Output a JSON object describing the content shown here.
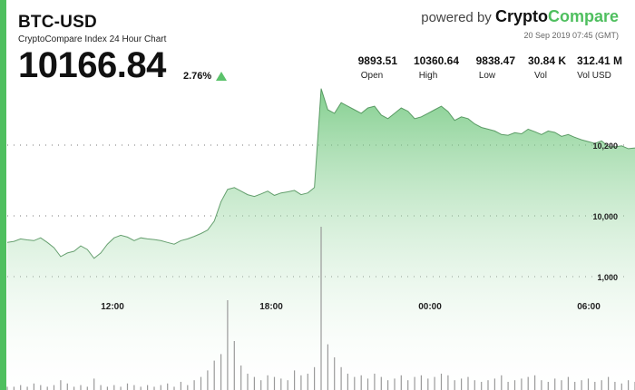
{
  "colors": {
    "accent": "#4fbf5f",
    "area_fill_top": "#5bbf6a",
    "area_fill_bottom": "#ffffff",
    "line": "#2d7a3a",
    "volume": "#9a9a9a",
    "up": "#5bc26b"
  },
  "header": {
    "pair": "BTC-USD",
    "subtitle": "CryptoCompare Index 24 Hour Chart",
    "price": "10166.84",
    "change": "2.76%",
    "change_icon": "triangle-up-icon"
  },
  "branding": {
    "prefix": "powered by",
    "brand_a": "Crypto",
    "brand_b": "Compare",
    "timestamp": "20 Sep 2019 07:45 (GMT)"
  },
  "stats": [
    {
      "value": "9893.51",
      "label": "Open"
    },
    {
      "value": "10360.64",
      "label": "High"
    },
    {
      "value": "9838.47",
      "label": "Low"
    },
    {
      "value": "30.84 K",
      "label": "Vol"
    },
    {
      "value": "312.41 M",
      "label": "Vol USD"
    }
  ],
  "chart_data": {
    "type": "area",
    "x_ticks": [
      "12:00",
      "18:00",
      "00:00",
      "06:00"
    ],
    "y_ticks": [
      "10,200",
      "10,000",
      "1,000"
    ],
    "grid": true,
    "series": [
      {
        "values": [
          9925,
          9928,
          9935,
          9932,
          9930,
          9938,
          9925,
          9910,
          9885,
          9895,
          9900,
          9915,
          9905,
          9880,
          9895,
          9920,
          9938,
          9945,
          9940,
          9930,
          9938,
          9935,
          9933,
          9930,
          9925,
          9920,
          9930,
          9935,
          9942,
          9950,
          9960,
          9985,
          10040,
          10075,
          10080,
          10070,
          10060,
          10055,
          10062,
          10070,
          10058,
          10065,
          10068,
          10072,
          10060,
          10065,
          10080,
          10360,
          10300,
          10290,
          10320,
          10310,
          10300,
          10290,
          10305,
          10310,
          10285,
          10275,
          10290,
          10305,
          10296,
          10275,
          10280,
          10290,
          10300,
          10310,
          10295,
          10270,
          10280,
          10275,
          10260,
          10250,
          10245,
          10240,
          10230,
          10228,
          10235,
          10232,
          10245,
          10238,
          10230,
          10240,
          10236,
          10225,
          10230,
          10222,
          10215,
          10210,
          10205,
          10212,
          10196,
          10195,
          10198,
          10190,
          10192
        ]
      }
    ],
    "volume": [
      2,
      2,
      3,
      2,
      4,
      3,
      2,
      3,
      6,
      4,
      2,
      3,
      2,
      7,
      3,
      2,
      3,
      2,
      4,
      3,
      2,
      3,
      2,
      3,
      4,
      2,
      5,
      3,
      6,
      8,
      12,
      18,
      22,
      55,
      30,
      15,
      10,
      8,
      6,
      9,
      8,
      7,
      6,
      12,
      9,
      10,
      14,
      100,
      28,
      20,
      14,
      10,
      8,
      9,
      7,
      10,
      8,
      6,
      7,
      9,
      6,
      8,
      9,
      7,
      8,
      10,
      9,
      6,
      7,
      8,
      6,
      5,
      6,
      7,
      9,
      5,
      6,
      7,
      8,
      9,
      6,
      5,
      7,
      6,
      8,
      5,
      6,
      7,
      5,
      6,
      8,
      5,
      4,
      6,
      5
    ]
  }
}
